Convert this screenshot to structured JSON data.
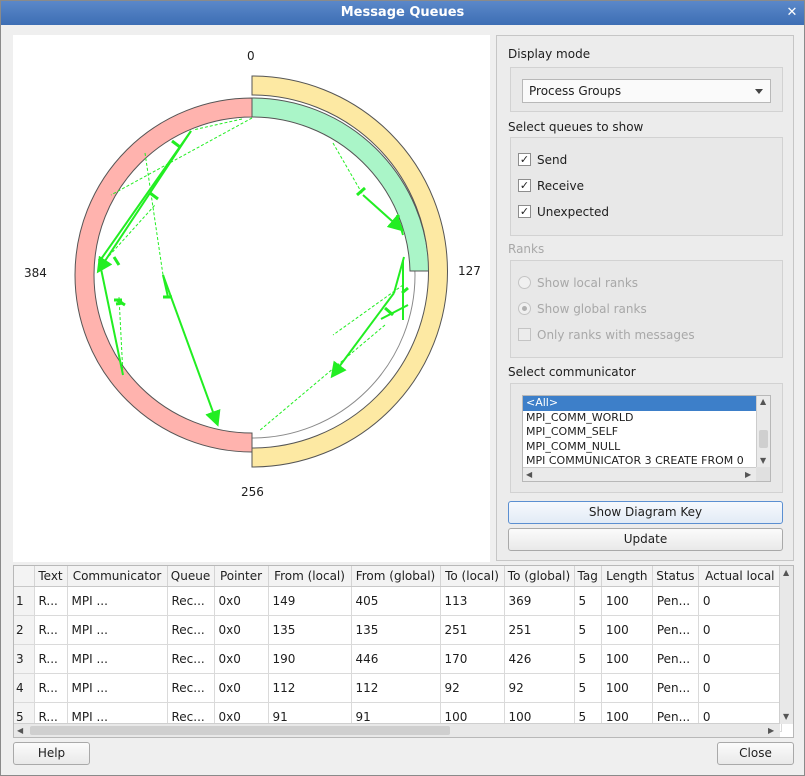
{
  "window": {
    "title": "Message Queues",
    "close_glyph": "✕"
  },
  "diagram": {
    "labels": {
      "top": "0",
      "right": "127",
      "bottom": "256",
      "left": "384"
    },
    "colors": {
      "send": "#ffb3ae",
      "receive": "#aaf5c8",
      "unexpected": "#fde9a3",
      "message_line": "#22ee22"
    }
  },
  "panel": {
    "display_mode_label": "Display mode",
    "display_mode_value": "Process Groups",
    "select_queues_label": "Select queues to show",
    "queues": [
      {
        "label": "Send",
        "checked": true
      },
      {
        "label": "Receive",
        "checked": true
      },
      {
        "label": "Unexpected",
        "checked": true
      }
    ],
    "ranks_label": "Ranks",
    "ranks_options": [
      {
        "label": "Show local ranks",
        "selected": false
      },
      {
        "label": "Show global ranks",
        "selected": true
      }
    ],
    "only_ranks_label": "Only ranks with messages",
    "select_comm_label": "Select communicator",
    "communicators": [
      "<All>",
      "MPI_COMM_WORLD",
      "MPI_COMM_SELF",
      "MPI_COMM_NULL",
      "MPI COMMUNICATOR 3 CREATE FROM 0"
    ],
    "show_key_button": "Show Diagram Key",
    "update_button": "Update"
  },
  "table": {
    "columns": [
      "",
      "Text",
      "Communicator",
      "Queue",
      "Pointer",
      "From (local)",
      "From (global)",
      "To (local)",
      "To (global)",
      "Tag",
      "Length",
      "Status",
      "Actual local"
    ],
    "rows": [
      [
        "1",
        "R...",
        "MPI ...",
        "Rec...",
        "0x0",
        "149",
        "405",
        "113",
        "369",
        "5",
        "100",
        "Pen...",
        "0"
      ],
      [
        "2",
        "R...",
        "MPI ...",
        "Rec...",
        "0x0",
        "135",
        "135",
        "251",
        "251",
        "5",
        "100",
        "Pen...",
        "0"
      ],
      [
        "3",
        "R...",
        "MPI ...",
        "Rec...",
        "0x0",
        "190",
        "446",
        "170",
        "426",
        "5",
        "100",
        "Pen...",
        "0"
      ],
      [
        "4",
        "R...",
        "MPI ...",
        "Rec...",
        "0x0",
        "112",
        "112",
        "92",
        "92",
        "5",
        "100",
        "Pen...",
        "0"
      ],
      [
        "5",
        "R...",
        "MPI ...",
        "Rec...",
        "0x0",
        "91",
        "91",
        "100",
        "100",
        "5",
        "100",
        "Pen...",
        "0"
      ]
    ]
  },
  "footer": {
    "help_button": "Help",
    "close_button": "Close"
  }
}
